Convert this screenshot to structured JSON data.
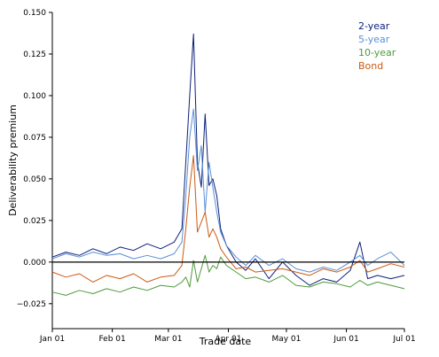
{
  "chart_data": {
    "type": "line",
    "xlabel": "Trade date",
    "ylabel": "Deliverability premium",
    "ylim": [
      -0.04,
      0.15
    ],
    "y_ticks": [
      -0.025,
      0.0,
      0.025,
      0.05,
      0.075,
      0.1,
      0.125,
      0.15
    ],
    "y_tick_labels": [
      "−0.025",
      "0.000",
      "0.025",
      "0.050",
      "0.075",
      "0.100",
      "0.125",
      "0.150"
    ],
    "x_ticks": [
      "Jan 01",
      "Feb 01",
      "Mar 01",
      "Apr 01",
      "May 01",
      "Jun 01",
      "Jul 01"
    ],
    "x_range": [
      "2020-01-01",
      "2020-07-01"
    ],
    "zero_line": true,
    "grid": false,
    "legend_position": "top-right",
    "series": [
      {
        "name": "2-year",
        "color": "#0b1f7a",
        "x": [
          "2020-01-01",
          "2020-01-08",
          "2020-01-15",
          "2020-01-22",
          "2020-01-29",
          "2020-02-05",
          "2020-02-12",
          "2020-02-19",
          "2020-02-26",
          "2020-03-04",
          "2020-03-08",
          "2020-03-10",
          "2020-03-12",
          "2020-03-14",
          "2020-03-16",
          "2020-03-18",
          "2020-03-20",
          "2020-03-22",
          "2020-03-24",
          "2020-03-26",
          "2020-03-28",
          "2020-03-31",
          "2020-04-05",
          "2020-04-10",
          "2020-04-15",
          "2020-04-22",
          "2020-04-29",
          "2020-05-06",
          "2020-05-13",
          "2020-05-20",
          "2020-05-27",
          "2020-06-03",
          "2020-06-08",
          "2020-06-12",
          "2020-06-17",
          "2020-06-24",
          "2020-07-01"
        ],
        "values": [
          0.003,
          0.006,
          0.004,
          0.008,
          0.005,
          0.009,
          0.007,
          0.011,
          0.008,
          0.012,
          0.02,
          0.06,
          0.1,
          0.137,
          0.06,
          0.045,
          0.089,
          0.046,
          0.05,
          0.04,
          0.02,
          0.01,
          0.0,
          -0.005,
          0.002,
          -0.01,
          0.0,
          -0.008,
          -0.014,
          -0.01,
          -0.012,
          -0.005,
          0.012,
          -0.01,
          -0.008,
          -0.01,
          -0.008
        ]
      },
      {
        "name": "5-year",
        "color": "#5b8fd6",
        "x": [
          "2020-01-01",
          "2020-01-08",
          "2020-01-15",
          "2020-01-22",
          "2020-01-29",
          "2020-02-05",
          "2020-02-12",
          "2020-02-19",
          "2020-02-26",
          "2020-03-04",
          "2020-03-08",
          "2020-03-10",
          "2020-03-12",
          "2020-03-14",
          "2020-03-16",
          "2020-03-18",
          "2020-03-20",
          "2020-03-22",
          "2020-03-24",
          "2020-03-26",
          "2020-03-28",
          "2020-03-31",
          "2020-04-05",
          "2020-04-10",
          "2020-04-15",
          "2020-04-22",
          "2020-04-29",
          "2020-05-06",
          "2020-05-13",
          "2020-05-20",
          "2020-05-27",
          "2020-06-03",
          "2020-06-08",
          "2020-06-12",
          "2020-06-17",
          "2020-06-24",
          "2020-07-01"
        ],
        "values": [
          0.002,
          0.005,
          0.003,
          0.006,
          0.004,
          0.005,
          0.002,
          0.004,
          0.002,
          0.005,
          0.012,
          0.04,
          0.075,
          0.092,
          0.055,
          0.07,
          0.03,
          0.06,
          0.045,
          0.03,
          0.018,
          0.01,
          0.003,
          -0.002,
          0.004,
          -0.002,
          0.002,
          -0.004,
          -0.006,
          -0.003,
          -0.005,
          0.0,
          0.004,
          -0.002,
          0.002,
          0.006,
          -0.002
        ]
      },
      {
        "name": "10-year",
        "color": "#4e9a3a",
        "x": [
          "2020-01-01",
          "2020-01-08",
          "2020-01-15",
          "2020-01-22",
          "2020-01-29",
          "2020-02-05",
          "2020-02-12",
          "2020-02-19",
          "2020-02-26",
          "2020-03-04",
          "2020-03-08",
          "2020-03-10",
          "2020-03-12",
          "2020-03-14",
          "2020-03-16",
          "2020-03-18",
          "2020-03-20",
          "2020-03-22",
          "2020-03-24",
          "2020-03-26",
          "2020-03-28",
          "2020-03-31",
          "2020-04-05",
          "2020-04-10",
          "2020-04-15",
          "2020-04-22",
          "2020-04-29",
          "2020-05-06",
          "2020-05-13",
          "2020-05-20",
          "2020-05-27",
          "2020-06-03",
          "2020-06-08",
          "2020-06-12",
          "2020-06-17",
          "2020-06-24",
          "2020-07-01"
        ],
        "values": [
          -0.018,
          -0.02,
          -0.017,
          -0.019,
          -0.016,
          -0.018,
          -0.015,
          -0.017,
          -0.014,
          -0.015,
          -0.012,
          -0.009,
          -0.015,
          0.001,
          -0.012,
          -0.004,
          0.004,
          -0.006,
          -0.002,
          -0.004,
          0.003,
          -0.002,
          -0.006,
          -0.01,
          -0.009,
          -0.012,
          -0.008,
          -0.014,
          -0.015,
          -0.012,
          -0.013,
          -0.015,
          -0.011,
          -0.014,
          -0.012,
          -0.014,
          -0.016
        ]
      },
      {
        "name": "Bond",
        "color": "#cc5a12",
        "x": [
          "2020-01-01",
          "2020-01-08",
          "2020-01-15",
          "2020-01-22",
          "2020-01-29",
          "2020-02-05",
          "2020-02-12",
          "2020-02-19",
          "2020-02-26",
          "2020-03-04",
          "2020-03-08",
          "2020-03-10",
          "2020-03-12",
          "2020-03-14",
          "2020-03-16",
          "2020-03-18",
          "2020-03-20",
          "2020-03-22",
          "2020-03-24",
          "2020-03-26",
          "2020-03-28",
          "2020-03-31",
          "2020-04-05",
          "2020-04-10",
          "2020-04-15",
          "2020-04-22",
          "2020-04-29",
          "2020-05-06",
          "2020-05-13",
          "2020-05-20",
          "2020-05-27",
          "2020-06-03",
          "2020-06-08",
          "2020-06-12",
          "2020-06-17",
          "2020-06-24",
          "2020-07-01"
        ],
        "values": [
          -0.006,
          -0.009,
          -0.007,
          -0.012,
          -0.008,
          -0.01,
          -0.007,
          -0.012,
          -0.009,
          -0.008,
          -0.002,
          0.02,
          0.045,
          0.064,
          0.018,
          0.024,
          0.03,
          0.015,
          0.02,
          0.015,
          0.008,
          0.003,
          -0.004,
          -0.003,
          -0.006,
          -0.005,
          -0.004,
          -0.006,
          -0.008,
          -0.004,
          -0.006,
          -0.003,
          0.001,
          -0.006,
          -0.004,
          -0.001,
          -0.003
        ]
      }
    ]
  }
}
